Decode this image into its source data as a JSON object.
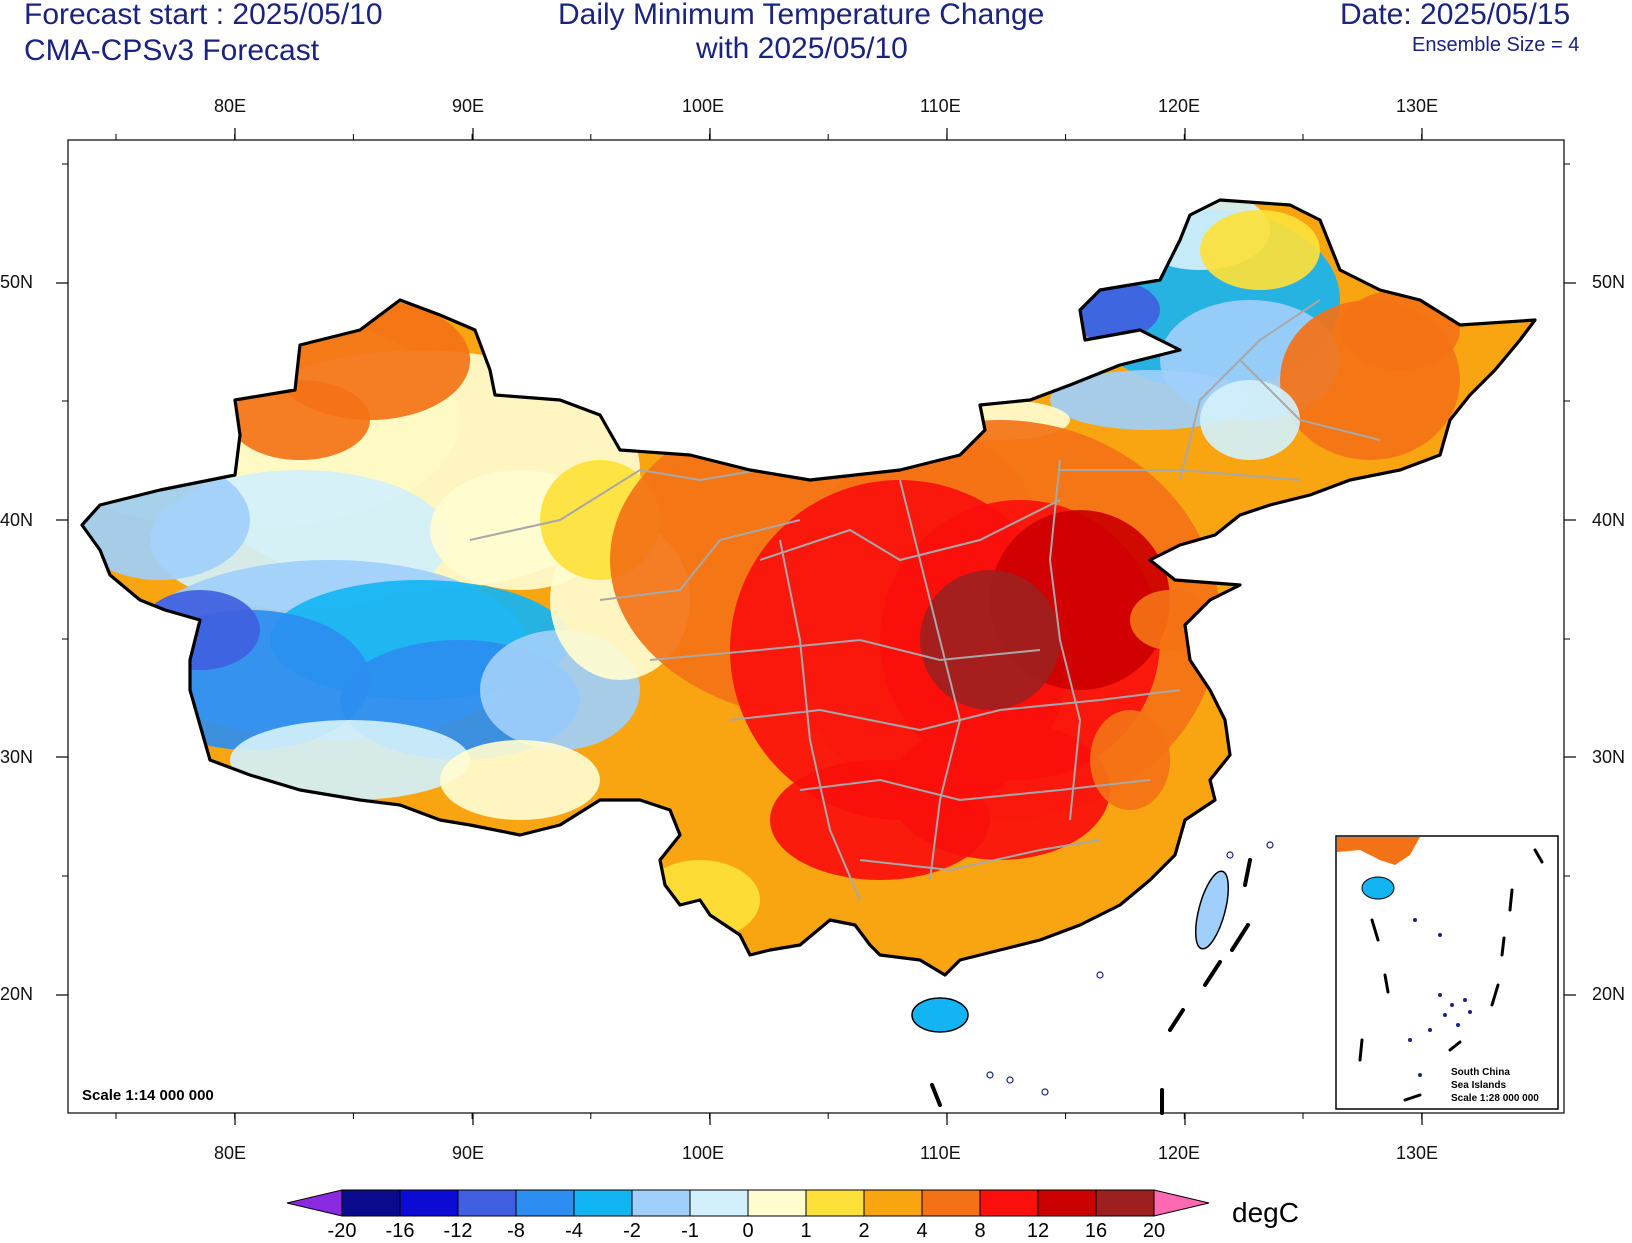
{
  "header": {
    "forecast_start": "Forecast start : 2025/05/10",
    "model": "CMA-CPSv3 Forecast",
    "title_line1": "Daily Minimum Temperature Change",
    "title_line2": "with 2025/05/10",
    "date": "Date: 2025/05/15",
    "ensemble": "Ensemble Size = 4"
  },
  "axes": {
    "lon_labels": [
      "80E",
      "90E",
      "100E",
      "110E",
      "120E",
      "130E"
    ],
    "lat_labels": [
      "50N",
      "40N",
      "30N",
      "20N"
    ]
  },
  "map": {
    "scale": "Scale 1:14 000 000",
    "inset": {
      "line1": "South China",
      "line2": "Sea Islands",
      "line3": "Scale 1:28 000 000"
    }
  },
  "colorbar": {
    "unit": "degC",
    "labels": [
      "-20",
      "-16",
      "-12",
      "-8",
      "-4",
      "-2",
      "-1",
      "0",
      "1",
      "2",
      "4",
      "8",
      "12",
      "16",
      "20"
    ],
    "colors": [
      "#0a0a8c",
      "#0b0bd4",
      "#3f5fe0",
      "#2b8ef0",
      "#13b4f3",
      "#9fcffa",
      "#d2f0fb",
      "#fffcd0",
      "#fde13a",
      "#f9a511",
      "#f47216",
      "#fa0f0c",
      "#cc0000",
      "#9e1f1f"
    ],
    "low_color": "#8a2be2",
    "high_color": "#ff69b4"
  }
}
